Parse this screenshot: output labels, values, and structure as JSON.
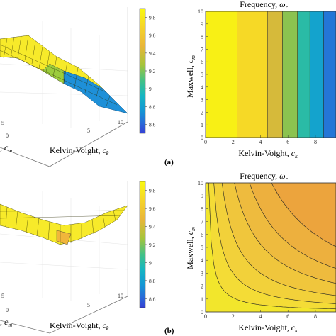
{
  "panels": [
    {
      "tag": "(a)",
      "surface": {
        "xlabel_base": "Kelvin-Voight, ",
        "xlabel_sym": "c",
        "xlabel_sub": "k",
        "ylabel_visible": ", ",
        "ylabel_sym": "c",
        "ylabel_sub": "m",
        "xticks": [
          "5",
          "10"
        ],
        "yticks": [
          "5",
          "0"
        ]
      },
      "colorbar": {
        "ticks": [
          "9.8",
          "9.6",
          "9.4",
          "9.2",
          "9",
          "8.8",
          "8.6"
        ],
        "range": [
          8.5,
          9.9
        ]
      },
      "contour": {
        "title_base": "Frequency, ",
        "title_sym": "ω",
        "title_sub": "r",
        "ylabel_base": "Maxwell, ",
        "ylabel_sym": "c",
        "ylabel_sub": "m",
        "xlabel_base": "Kelvin-Voight, ",
        "xlabel_sym": "c",
        "xlabel_sub": "k",
        "xticks": [
          "0",
          "2",
          "4",
          "6",
          "8"
        ],
        "yticks": [
          "10",
          "9",
          "8",
          "7",
          "6",
          "5",
          "4",
          "3",
          "2",
          "1",
          "0"
        ]
      }
    },
    {
      "tag": "(b)",
      "surface": {
        "xlabel_base": "Kelvin-Voight, ",
        "xlabel_sym": "c",
        "xlabel_sub": "k",
        "ylabel_visible": ", ",
        "ylabel_sym": "c",
        "ylabel_sub": "m",
        "xticks": [
          "5",
          "10"
        ],
        "yticks": [
          "5",
          "0"
        ]
      },
      "colorbar": {
        "ticks": [
          "9.8",
          "9.6",
          "9.4",
          "9.2",
          "9",
          "8.8",
          "8.6"
        ],
        "range": [
          8.5,
          9.9
        ]
      },
      "contour": {
        "title_base": "Frequency, ",
        "title_sym": "ω",
        "title_sub": "r",
        "ylabel_base": "Maxwell, ",
        "ylabel_sym": "c",
        "ylabel_sub": "m",
        "xlabel_base": "Kelvin-Voight, ",
        "xlabel_sym": "c",
        "xlabel_sub": "k",
        "xticks": [
          "0",
          "2",
          "4",
          "6",
          "8"
        ],
        "yticks": [
          "10",
          "9",
          "8",
          "7",
          "6",
          "5",
          "4",
          "3",
          "2",
          "1",
          "0"
        ]
      }
    }
  ],
  "chart_data": [
    {
      "type": "surface",
      "panel": "(a)",
      "x": [
        0,
        10
      ],
      "y": [
        0,
        10
      ],
      "xlabel": "Kelvin-Voight, c_k",
      "ylabel": "Maxwell, c_m",
      "colorbar_range": [
        8.5,
        9.9
      ],
      "trend": "frequency decreases with c_k, independent of c_m"
    },
    {
      "type": "heatmap",
      "panel": "(a)",
      "title": "Frequency, ω_r",
      "xlabel": "Kelvin-Voight, c_k",
      "ylabel": "Maxwell, c_m",
      "xlim": [
        0,
        9.5
      ],
      "ylim": [
        0,
        10
      ],
      "bands_x": [
        0,
        2.3,
        4.5,
        5.6,
        6.7,
        7.6,
        8.6,
        9.5
      ],
      "band_values": [
        9.85,
        9.72,
        9.42,
        9.22,
        9.0,
        8.82,
        8.65
      ],
      "contour_lines_x": [
        2.3,
        4.5,
        5.6,
        6.7,
        7.6,
        8.6
      ]
    },
    {
      "type": "surface",
      "panel": "(b)",
      "x": [
        0,
        10
      ],
      "y": [
        0,
        10
      ],
      "xlabel": "Kelvin-Voight, c_k",
      "ylabel": "Maxwell, c_m",
      "colorbar_range": [
        8.5,
        9.9
      ],
      "trend": "saddle-like dip toward high c_k and high c_m"
    },
    {
      "type": "heatmap",
      "panel": "(b)",
      "title": "Frequency, ω_r",
      "xlabel": "Kelvin-Voight, c_k",
      "ylabel": "Maxwell, c_m",
      "xlim": [
        0,
        9.5
      ],
      "ylim": [
        0,
        10
      ],
      "level_products": [
        2.2,
        6,
        12,
        21,
        32,
        48
      ],
      "level_colors": [
        "#f2e62c",
        "#f4dc36",
        "#f2d13a",
        "#f0c63c",
        "#eebb3e",
        "#edb03e",
        "#eca43d"
      ]
    }
  ],
  "colors": {
    "parula_yellow": "#f9f90f",
    "parula_orange": "#f1b63b",
    "parula_green": "#6bcb5e",
    "parula_teal": "#1db6c0",
    "parula_blue": "#1496d4",
    "parula_dark": "#3540d4"
  }
}
